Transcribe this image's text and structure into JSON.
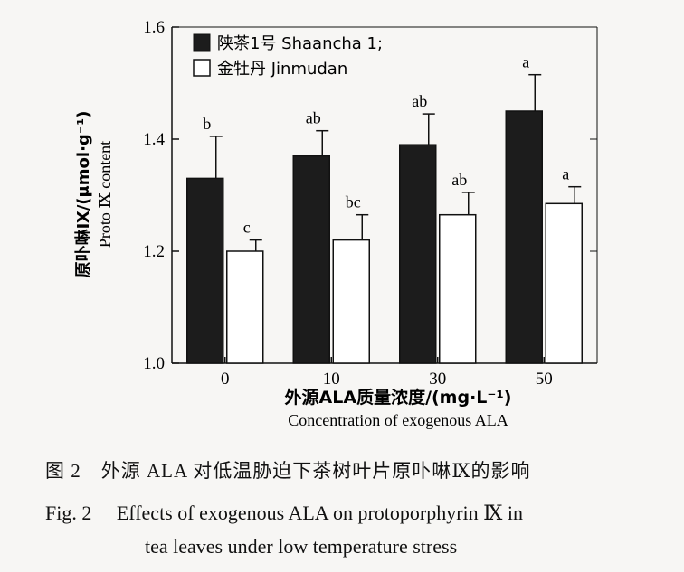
{
  "chart_data": {
    "type": "bar",
    "categories": [
      "0",
      "10",
      "30",
      "50"
    ],
    "series": [
      {
        "name": "陕茶1号 Shaancha 1;",
        "values": [
          1.33,
          1.37,
          1.39,
          1.45
        ],
        "errors": [
          0.075,
          0.045,
          0.055,
          0.065
        ],
        "labels": [
          "b",
          "ab",
          "ab",
          "a"
        ],
        "color": "#1c1c1c"
      },
      {
        "name": "金牡丹 Jinmudan",
        "values": [
          1.2,
          1.22,
          1.265,
          1.285
        ],
        "errors": [
          0.02,
          0.045,
          0.04,
          0.03
        ],
        "labels": [
          "c",
          "bc",
          "ab",
          "a"
        ],
        "color": "#ffffff"
      }
    ],
    "ylim": [
      1.0,
      1.6
    ],
    "yticks": [
      "1.0",
      "1.2",
      "1.4",
      "1.6"
    ],
    "ylabel_zh": "原卟啉Ⅸ/(μmol·g⁻¹)",
    "ylabel_en": "Proto Ⅸ content",
    "xlabel_zh": "外源ALA质量浓度/(mg·L⁻¹)",
    "xlabel_en": "Concentration of exogenous ALA",
    "legend_position": "top-left"
  },
  "caption": {
    "zh": "图 2　外源 ALA 对低温胁迫下茶树叶片原卟啉Ⅸ的影响",
    "en_line1": "Fig. 2　 Effects of exogenous ALA on protoporphyrin Ⅸ in",
    "en_line2": "tea leaves under low temperature stress"
  }
}
